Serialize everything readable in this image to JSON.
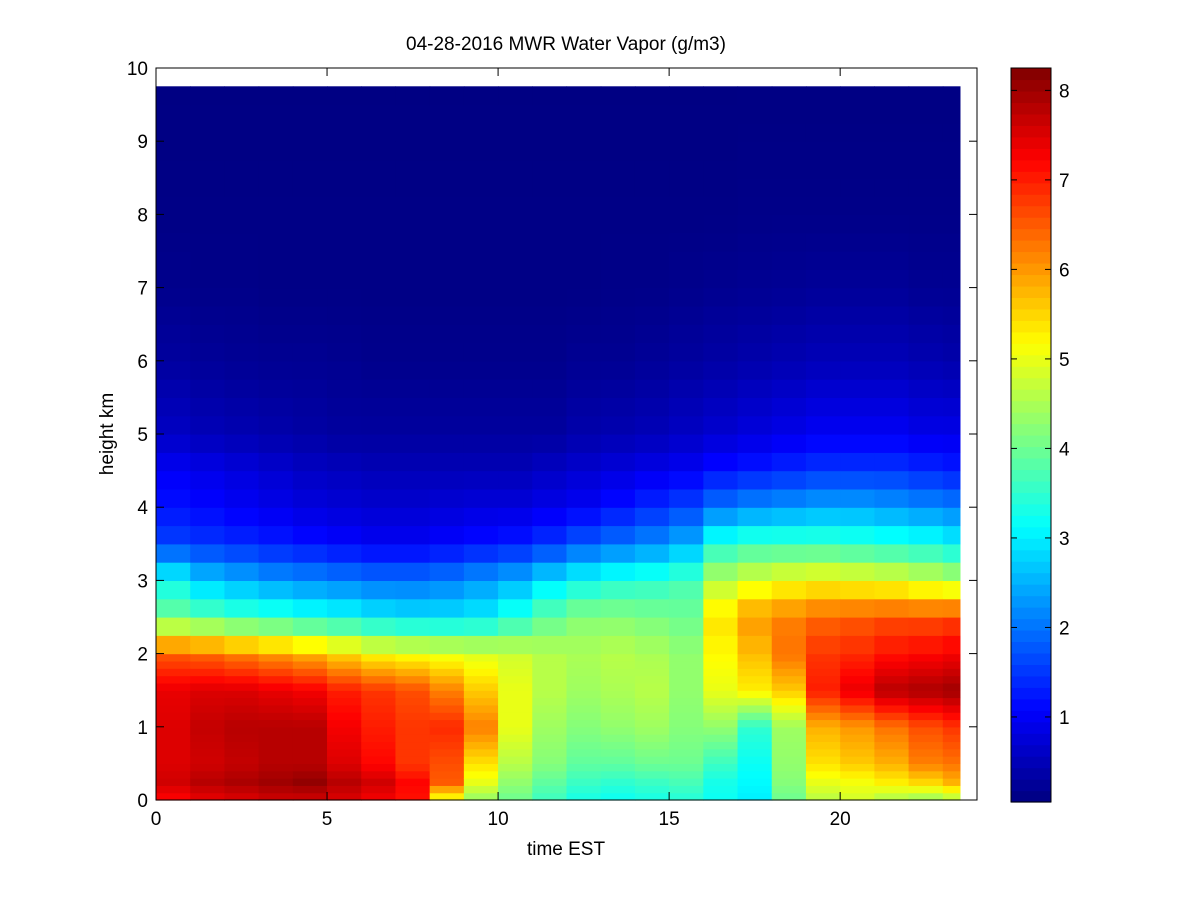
{
  "chart_data": {
    "type": "heatmap",
    "title": "04-28-2016 MWR Water Vapor (g/m3)",
    "xlabel": "time EST",
    "ylabel": "height km",
    "xlim": [
      0,
      24
    ],
    "ylim": [
      0,
      10
    ],
    "xticks": [
      0,
      5,
      10,
      15,
      20
    ],
    "yticks": [
      0,
      1,
      2,
      3,
      4,
      5,
      6,
      7,
      8,
      9,
      10
    ],
    "colorbar": {
      "colormap": "jet",
      "range": [
        0.05,
        8.25
      ],
      "ticks": [
        1,
        2,
        3,
        4,
        5,
        6,
        7,
        8
      ]
    },
    "x": [
      0,
      1,
      2,
      3,
      4,
      5,
      6,
      7,
      8,
      9,
      10,
      11,
      12,
      13,
      14,
      15,
      16,
      17,
      18,
      19,
      20,
      21,
      22,
      23
    ],
    "y_levels": [
      0,
      0.1,
      0.2,
      0.3,
      0.4,
      0.5,
      0.6,
      0.7,
      0.8,
      0.9,
      1.0,
      1.1,
      1.2,
      1.3,
      1.4,
      1.5,
      1.6,
      1.7,
      1.8,
      1.9,
      2.0,
      2.25,
      2.5,
      2.75,
      3.0,
      3.25,
      3.5,
      3.75,
      4.0,
      4.25,
      4.5,
      4.75,
      5.0,
      5.25,
      5.5,
      5.75,
      6.0,
      6.25,
      6.5,
      6.75,
      7.0,
      7.25,
      7.5,
      7.75,
      8.0,
      8.25,
      8.5,
      8.75,
      9.0,
      9.25,
      9.5,
      9.75
    ],
    "profiles": {
      "heights": [
        0.0,
        0.25,
        0.5,
        1.0,
        1.5,
        2.0,
        2.5,
        3.0,
        3.5,
        4.0,
        4.5,
        5.0,
        6.0,
        7.0,
        8.0,
        9.75
      ],
      "values": [
        [
          7.2,
          7.6,
          7.5,
          7.5,
          7.4,
          6.5,
          4.0,
          3.2,
          1.6,
          1.2,
          1.0,
          0.6,
          0.3,
          0.15,
          0.1,
          0.08
        ],
        [
          7.4,
          7.8,
          7.6,
          7.7,
          7.5,
          6.4,
          3.8,
          2.7,
          1.5,
          1.1,
          0.9,
          0.5,
          0.25,
          0.12,
          0.1,
          0.08
        ],
        [
          7.5,
          7.9,
          7.7,
          7.8,
          7.5,
          6.2,
          3.6,
          2.5,
          1.4,
          1.0,
          0.8,
          0.45,
          0.22,
          0.12,
          0.1,
          0.08
        ],
        [
          7.6,
          8.0,
          7.8,
          7.8,
          7.4,
          6.0,
          3.5,
          2.3,
          1.3,
          0.9,
          0.7,
          0.4,
          0.2,
          0.1,
          0.1,
          0.08
        ],
        [
          7.6,
          8.1,
          7.8,
          7.8,
          7.3,
          5.8,
          3.3,
          2.2,
          1.2,
          0.8,
          0.6,
          0.35,
          0.2,
          0.1,
          0.1,
          0.08
        ],
        [
          7.5,
          7.8,
          7.5,
          7.3,
          7.0,
          5.5,
          3.2,
          2.1,
          1.1,
          0.75,
          0.55,
          0.3,
          0.18,
          0.1,
          0.1,
          0.08
        ],
        [
          7.3,
          7.6,
          7.2,
          7.0,
          6.8,
          5.2,
          3.0,
          2.0,
          1.0,
          0.7,
          0.5,
          0.3,
          0.15,
          0.1,
          0.1,
          0.08
        ],
        [
          7.1,
          7.2,
          6.8,
          6.8,
          6.6,
          5.1,
          2.9,
          2.0,
          1.0,
          0.7,
          0.5,
          0.3,
          0.15,
          0.1,
          0.1,
          0.08
        ],
        [
          5.0,
          6.5,
          6.6,
          6.9,
          6.2,
          5.0,
          2.9,
          2.1,
          1.1,
          0.75,
          0.5,
          0.3,
          0.15,
          0.1,
          0.1,
          0.08
        ],
        [
          4.3,
          5.0,
          5.4,
          6.2,
          5.6,
          4.9,
          3.0,
          2.3,
          1.2,
          0.8,
          0.5,
          0.3,
          0.15,
          0.1,
          0.1,
          0.08
        ],
        [
          4.0,
          4.3,
          4.6,
          5.0,
          5.0,
          4.8,
          3.4,
          2.5,
          1.3,
          0.8,
          0.5,
          0.3,
          0.15,
          0.1,
          0.1,
          0.08
        ],
        [
          3.6,
          3.9,
          4.2,
          4.4,
          4.6,
          4.6,
          3.9,
          2.9,
          1.5,
          0.9,
          0.6,
          0.3,
          0.15,
          0.1,
          0.1,
          0.08
        ],
        [
          3.3,
          3.6,
          3.9,
          4.2,
          4.4,
          4.5,
          4.2,
          3.2,
          1.8,
          1.0,
          0.7,
          0.4,
          0.2,
          0.1,
          0.1,
          0.08
        ],
        [
          3.2,
          3.5,
          3.9,
          4.3,
          4.5,
          4.6,
          4.2,
          3.4,
          2.0,
          1.2,
          0.8,
          0.45,
          0.2,
          0.12,
          0.1,
          0.08
        ],
        [
          3.3,
          3.6,
          4.0,
          4.4,
          4.6,
          4.5,
          4.1,
          3.5,
          2.2,
          1.4,
          0.9,
          0.5,
          0.25,
          0.12,
          0.1,
          0.08
        ],
        [
          3.4,
          3.7,
          4.0,
          4.2,
          4.3,
          4.3,
          4.0,
          3.7,
          2.5,
          1.6,
          1.0,
          0.6,
          0.3,
          0.15,
          0.1,
          0.08
        ],
        [
          3.2,
          3.3,
          3.6,
          4.3,
          5.0,
          5.2,
          5.4,
          4.6,
          3.4,
          2.0,
          1.2,
          0.7,
          0.35,
          0.18,
          0.1,
          0.08
        ],
        [
          3.0,
          3.1,
          3.2,
          3.5,
          5.3,
          5.7,
          6.0,
          4.9,
          3.6,
          2.2,
          1.3,
          0.8,
          0.4,
          0.2,
          0.12,
          0.08
        ],
        [
          4.0,
          4.2,
          4.3,
          4.4,
          5.6,
          6.3,
          6.2,
          5.1,
          3.6,
          2.3,
          1.4,
          0.9,
          0.45,
          0.22,
          0.12,
          0.08
        ],
        [
          4.6,
          5.0,
          5.4,
          5.8,
          7.0,
          6.8,
          6.4,
          5.2,
          3.6,
          2.4,
          1.5,
          1.0,
          0.5,
          0.25,
          0.12,
          0.08
        ],
        [
          4.8,
          5.1,
          5.6,
          6.0,
          7.4,
          6.9,
          6.5,
          5.1,
          3.5,
          2.4,
          1.5,
          1.0,
          0.5,
          0.25,
          0.12,
          0.08
        ],
        [
          4.5,
          5.3,
          5.8,
          6.3,
          7.8,
          7.1,
          6.6,
          5.0,
          3.4,
          2.3,
          1.5,
          1.0,
          0.5,
          0.25,
          0.12,
          0.08
        ],
        [
          4.3,
          5.5,
          6.2,
          6.6,
          7.9,
          7.2,
          6.6,
          4.8,
          3.3,
          2.2,
          1.4,
          0.9,
          0.45,
          0.2,
          0.12,
          0.08
        ],
        [
          4.5,
          5.8,
          6.3,
          6.8,
          8.0,
          7.3,
          6.7,
          4.6,
          3.1,
          2.1,
          1.3,
          0.9,
          0.4,
          0.2,
          0.12,
          0.08
        ]
      ]
    }
  }
}
